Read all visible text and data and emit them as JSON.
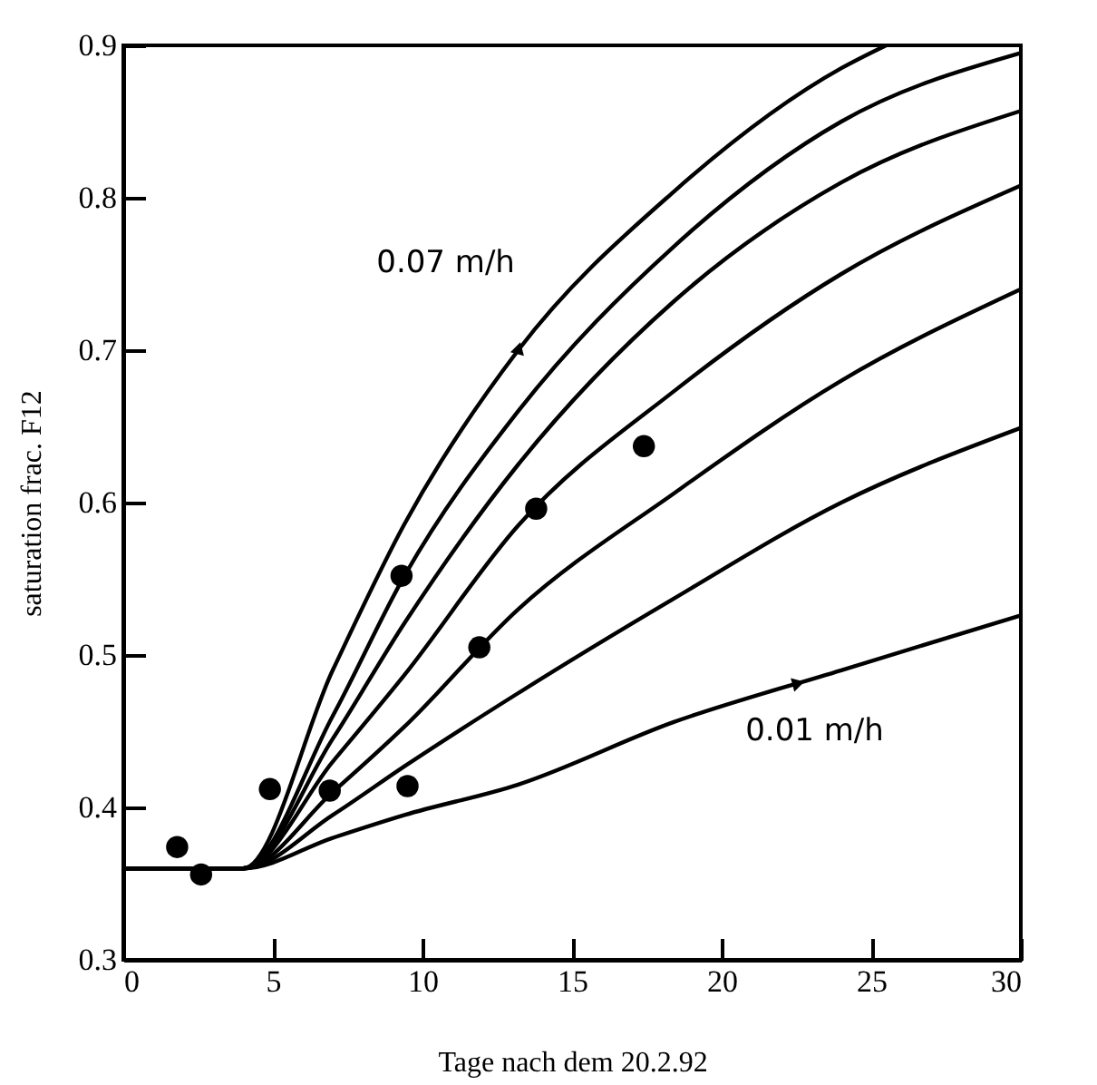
{
  "chart_data": {
    "type": "line",
    "xlabel": "Tage nach dem 20.2.92",
    "ylabel": "saturation frac. F12",
    "xlim": [
      0,
      30
    ],
    "ylim": [
      0.3,
      0.9
    ],
    "xticks": [
      0,
      5,
      10,
      15,
      20,
      25,
      30
    ],
    "yticks": [
      0.3,
      0.4,
      0.5,
      0.6,
      0.7,
      0.8,
      0.9
    ],
    "grid": false,
    "marker": "none",
    "line_style": "solid",
    "series": [
      {
        "color": "#000000",
        "x": [
          0,
          4,
          7,
          9.4,
          13.2,
          18.4,
          24,
          25.5
        ],
        "values": [
          0.36,
          0.36,
          0.49,
          0.586,
          0.7,
          0.804,
          0.885,
          0.9
        ]
      },
      {
        "color": "#000000",
        "x": [
          0,
          4,
          7,
          9.4,
          13.2,
          18.4,
          24,
          30
        ],
        "values": [
          0.36,
          0.36,
          0.46,
          0.552,
          0.66,
          0.768,
          0.85,
          0.895
        ]
      },
      {
        "color": "#000000",
        "x": [
          0,
          4,
          7,
          9.4,
          13.2,
          18.4,
          24,
          30
        ],
        "values": [
          0.36,
          0.36,
          0.445,
          0.521,
          0.625,
          0.732,
          0.81,
          0.857
        ]
      },
      {
        "color": "#000000",
        "x": [
          0,
          4,
          7,
          9.4,
          13.2,
          18.4,
          24,
          30
        ],
        "values": [
          0.36,
          0.36,
          0.43,
          0.487,
          0.585,
          0.673,
          0.75,
          0.808
        ]
      },
      {
        "color": "#000000",
        "x": [
          0,
          4,
          7,
          9.4,
          13.2,
          18.4,
          24,
          30
        ],
        "values": [
          0.36,
          0.36,
          0.41,
          0.453,
          0.53,
          0.606,
          0.68,
          0.74
        ]
      },
      {
        "color": "#000000",
        "x": [
          0,
          4,
          7,
          9.4,
          13.2,
          18.4,
          24,
          30
        ],
        "values": [
          0.36,
          0.36,
          0.395,
          0.427,
          0.475,
          0.537,
          0.6,
          0.649
        ]
      },
      {
        "color": "#000000",
        "x": [
          0,
          4,
          7,
          9.4,
          13.2,
          18.4,
          24,
          30
        ],
        "values": [
          0.36,
          0.36,
          0.38,
          0.395,
          0.415,
          0.456,
          0.49,
          0.526
        ]
      },
      {
        "type": "scatter",
        "marker": "circle",
        "color": "#000000",
        "x": [
          1.8,
          2.6,
          4.9,
          6.9,
          9.3,
          9.5,
          11.9,
          13.8,
          17.4
        ],
        "values": [
          0.374,
          0.356,
          0.412,
          0.411,
          0.552,
          0.414,
          0.505,
          0.596,
          0.637
        ]
      }
    ],
    "annotations": [
      {
        "text": "0.07 m/h",
        "x": 13.2,
        "y": 0.7
      },
      {
        "text": "0.01 m/h",
        "x": 22.5,
        "y": 0.481
      }
    ]
  }
}
